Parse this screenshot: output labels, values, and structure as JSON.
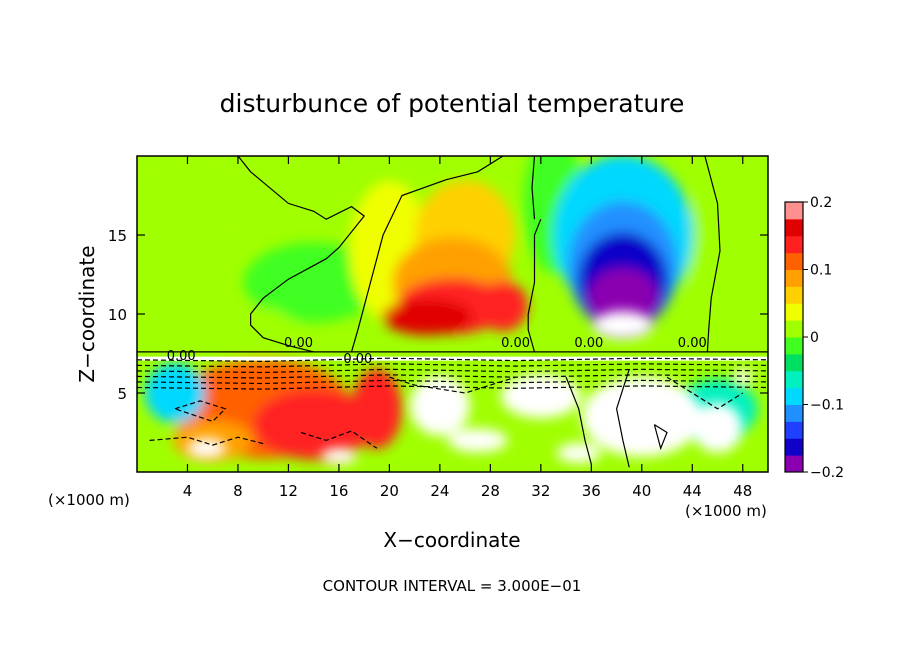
{
  "chart_data": {
    "type": "heatmap",
    "title": "disturbunce of potential temperature",
    "xlabel": "X−coordinate",
    "ylabel": "Z−coordinate",
    "x_unit_left": "(×1000 m)",
    "x_unit_right": "(×1000 m)",
    "xlim": [
      0,
      50
    ],
    "ylim": [
      0,
      20
    ],
    "x_ticks": [
      4,
      8,
      12,
      16,
      20,
      24,
      28,
      32,
      36,
      40,
      44,
      48
    ],
    "y_ticks": [
      5,
      10,
      15
    ],
    "colorbar": {
      "range": [
        -0.2,
        0.2
      ],
      "tick_values": [
        0.2,
        0.1,
        0,
        -0.1,
        -0.2
      ],
      "tick_labels": [
        "0.2",
        "0.1",
        "0",
        "−0.1",
        "−0.2"
      ],
      "colors": [
        "#8a00b0",
        "#1000c8",
        "#2040ff",
        "#2090ff",
        "#00d8ff",
        "#00f0c0",
        "#00e060",
        "#40ff20",
        "#a0ff00",
        "#f0ff00",
        "#ffd000",
        "#ffa000",
        "#ff6000",
        "#ff2020",
        "#e00000",
        "#ff9090"
      ]
    },
    "contour_labels": [
      "0.00",
      "0.00",
      "0.00",
      "0.00",
      "0.00",
      "0.00"
    ],
    "footer": "CONTOUR INTERVAL = 3.000E−01",
    "grid": false,
    "legend_placement": "right (colorbar)",
    "features": [
      {
        "description": "warm anomaly",
        "x": 25,
        "z": 10.5,
        "value": 0.15
      },
      {
        "description": "cold anomaly",
        "x": 38.5,
        "z": 11,
        "value": -0.2
      },
      {
        "description": "neutral band at top",
        "x": 10,
        "z": 15,
        "value": 0.02
      }
    ]
  }
}
